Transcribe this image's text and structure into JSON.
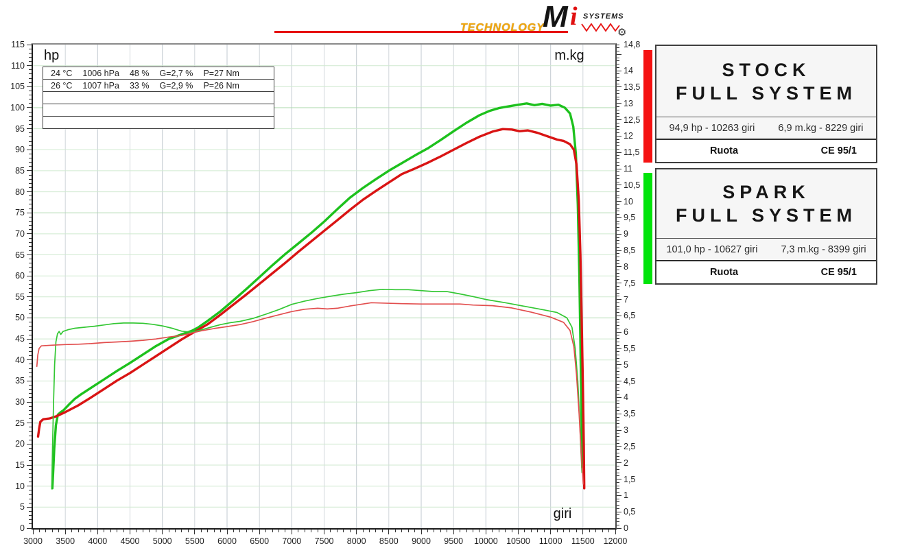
{
  "logo": {
    "technology": "TECHNOLOGY",
    "brand_m": "M",
    "brand_i": "i",
    "brand_systems": "SYSTEMS",
    "line_color": "#e60f0f",
    "technology_color": "#f3a70c"
  },
  "chart": {
    "ylabel_left": "hp",
    "ylabel_right": "m.kg",
    "xlabel": "giri",
    "info_rows": [
      [
        "24 °C",
        "1006 hPa",
        "48 %",
        "G=2,7 %",
        "P=27 Nm"
      ],
      [
        "26 °C",
        "1007 hPa",
        "33 %",
        "G=2,9 %",
        "P=26 Nm"
      ],
      [],
      [],
      []
    ]
  },
  "chart_data": {
    "type": "line",
    "title": "",
    "xlabel": "giri",
    "ylabel_left": "hp",
    "ylabel_right": "m.kg",
    "grid": {
      "h_step": 5,
      "v_step": 500,
      "h_color": "#cfe9cf",
      "h_color_major": "#abd8ab",
      "v_color": "#d0d6da",
      "v_color_major": "#c2cad0"
    },
    "x_axis": {
      "min": 3000,
      "max": 12000,
      "minor_step": 100,
      "major_step": 500,
      "labels": [
        "3000",
        "3500",
        "4000",
        "4500",
        "5000",
        "5500",
        "6000",
        "6500",
        "7000",
        "7500",
        "8000",
        "8500",
        "9000",
        "9500",
        "10000",
        "10500",
        "11000",
        "11500",
        "12000"
      ],
      "values": [
        3000,
        3500,
        4000,
        4500,
        5000,
        5500,
        6000,
        6500,
        7000,
        7500,
        8000,
        8500,
        9000,
        9500,
        10000,
        10500,
        11000,
        11500,
        12000
      ]
    },
    "left_axis": {
      "min": 0,
      "max": 115,
      "minor_step": 1,
      "major_step": 5,
      "labels": [
        "0",
        "5",
        "10",
        "15",
        "20",
        "25",
        "30",
        "35",
        "40",
        "45",
        "50",
        "55",
        "60",
        "65",
        "70",
        "75",
        "80",
        "85",
        "90",
        "95",
        "100",
        "105",
        "110",
        "115"
      ],
      "values": [
        0,
        5,
        10,
        15,
        20,
        25,
        30,
        35,
        40,
        45,
        50,
        55,
        60,
        65,
        70,
        75,
        80,
        85,
        90,
        95,
        100,
        105,
        110,
        115
      ]
    },
    "right_axis": {
      "min": 0,
      "max": 14.8,
      "minor_step": 0.1,
      "major_step": 0.5,
      "labels": [
        "0",
        "0,5",
        "1",
        "1,5",
        "2",
        "2,5",
        "3",
        "3,5",
        "4",
        "4,5",
        "5",
        "5,5",
        "6",
        "6,5",
        "7",
        "7,5",
        "8",
        "8,5",
        "9",
        "9,5",
        "10",
        "10,5",
        "11",
        "11,5",
        "12",
        "12,5",
        "13",
        "13,5",
        "14",
        "14,8"
      ],
      "values": [
        0,
        0.5,
        1,
        1.5,
        2,
        2.5,
        3,
        3.5,
        4,
        4.5,
        5,
        5.5,
        6,
        6.5,
        7,
        7.5,
        8,
        8.5,
        9,
        9.5,
        10,
        10.5,
        11,
        11.5,
        12,
        12.5,
        13,
        13.5,
        14,
        14.8
      ]
    },
    "series": [
      {
        "name": "spark-hp",
        "legend": "SPARK FULL SYSTEM hp",
        "axis": "left",
        "color": "#1dc11d",
        "width": 3.4,
        "points": [
          [
            3300,
            9.5
          ],
          [
            3312,
            13
          ],
          [
            3330,
            19
          ],
          [
            3355,
            24.5
          ],
          [
            3385,
            27
          ],
          [
            3430,
            27.6
          ],
          [
            3470,
            28
          ],
          [
            3550,
            29.3
          ],
          [
            3650,
            30.8
          ],
          [
            3750,
            31.9
          ],
          [
            3850,
            32.9
          ],
          [
            3950,
            33.9
          ],
          [
            4100,
            35.4
          ],
          [
            4300,
            37.4
          ],
          [
            4500,
            39.3
          ],
          [
            4700,
            41.3
          ],
          [
            4900,
            43.3
          ],
          [
            5100,
            45
          ],
          [
            5300,
            46.1
          ],
          [
            5450,
            46.9
          ],
          [
            5550,
            47.7
          ],
          [
            5700,
            49.3
          ],
          [
            5900,
            51.6
          ],
          [
            6100,
            54.2
          ],
          [
            6300,
            56.9
          ],
          [
            6500,
            59.7
          ],
          [
            6700,
            62.5
          ],
          [
            6900,
            65.2
          ],
          [
            7100,
            67.7
          ],
          [
            7300,
            70.2
          ],
          [
            7500,
            72.9
          ],
          [
            7700,
            75.8
          ],
          [
            7900,
            78.6
          ],
          [
            8100,
            80.9
          ],
          [
            8300,
            83
          ],
          [
            8500,
            85
          ],
          [
            8700,
            86.8
          ],
          [
            8900,
            88.6
          ],
          [
            9100,
            90.3
          ],
          [
            9300,
            92.3
          ],
          [
            9500,
            94.4
          ],
          [
            9700,
            96.4
          ],
          [
            9900,
            98.2
          ],
          [
            10050,
            99.2
          ],
          [
            10200,
            99.9
          ],
          [
            10350,
            100.3
          ],
          [
            10500,
            100.7
          ],
          [
            10630,
            101
          ],
          [
            10750,
            100.6
          ],
          [
            10870,
            100.9
          ],
          [
            11000,
            100.5
          ],
          [
            11120,
            100.7
          ],
          [
            11220,
            100
          ],
          [
            11300,
            98.6
          ],
          [
            11350,
            95.5
          ],
          [
            11390,
            89
          ],
          [
            11420,
            77
          ],
          [
            11445,
            60
          ],
          [
            11465,
            40
          ],
          [
            11480,
            25
          ],
          [
            11490,
            14.5
          ]
        ]
      },
      {
        "name": "stock-hp",
        "legend": "STOCK FULL SYSTEM hp",
        "axis": "left",
        "color": "#d91414",
        "width": 3.4,
        "points": [
          [
            3080,
            21.8
          ],
          [
            3095,
            23.6
          ],
          [
            3115,
            25.3
          ],
          [
            3160,
            25.9
          ],
          [
            3260,
            26.1
          ],
          [
            3360,
            26.6
          ],
          [
            3500,
            27.6
          ],
          [
            3700,
            29.2
          ],
          [
            3900,
            31.1
          ],
          [
            4100,
            33.1
          ],
          [
            4300,
            35.1
          ],
          [
            4500,
            36.9
          ],
          [
            4700,
            38.9
          ],
          [
            4900,
            40.9
          ],
          [
            5100,
            42.9
          ],
          [
            5300,
            44.9
          ],
          [
            5500,
            46.7
          ],
          [
            5700,
            48.5
          ],
          [
            5900,
            50.8
          ],
          [
            6100,
            53.2
          ],
          [
            6300,
            55.6
          ],
          [
            6500,
            58.1
          ],
          [
            6700,
            60.6
          ],
          [
            6900,
            63.1
          ],
          [
            7100,
            65.7
          ],
          [
            7300,
            68.2
          ],
          [
            7500,
            70.7
          ],
          [
            7700,
            73.2
          ],
          [
            7900,
            75.7
          ],
          [
            8100,
            78.1
          ],
          [
            8300,
            80.2
          ],
          [
            8500,
            82.2
          ],
          [
            8700,
            84.2
          ],
          [
            8900,
            85.5
          ],
          [
            9100,
            86.9
          ],
          [
            9300,
            88.4
          ],
          [
            9500,
            90
          ],
          [
            9700,
            91.6
          ],
          [
            9900,
            93.1
          ],
          [
            10100,
            94.3
          ],
          [
            10260,
            94.9
          ],
          [
            10400,
            94.8
          ],
          [
            10520,
            94.4
          ],
          [
            10650,
            94.6
          ],
          [
            10800,
            94
          ],
          [
            10950,
            93.2
          ],
          [
            11100,
            92.4
          ],
          [
            11200,
            92.1
          ],
          [
            11300,
            91.3
          ],
          [
            11360,
            90
          ],
          [
            11400,
            86.5
          ],
          [
            11435,
            78
          ],
          [
            11460,
            65
          ],
          [
            11480,
            50
          ],
          [
            11500,
            33
          ],
          [
            11512,
            20
          ],
          [
            11520,
            9.5
          ]
        ]
      },
      {
        "name": "spark-torque",
        "legend": "SPARK FULL SYSTEM m.kg",
        "axis": "right",
        "color": "#33c733",
        "width": 1.7,
        "points": [
          [
            3290,
            1.2
          ],
          [
            3302,
            2.4
          ],
          [
            3318,
            3.8
          ],
          [
            3335,
            5
          ],
          [
            3355,
            5.7
          ],
          [
            3380,
            5.95
          ],
          [
            3405,
            6.02
          ],
          [
            3430,
            5.93
          ],
          [
            3465,
            6.02
          ],
          [
            3550,
            6.08
          ],
          [
            3650,
            6.12
          ],
          [
            3800,
            6.15
          ],
          [
            3950,
            6.18
          ],
          [
            4100,
            6.22
          ],
          [
            4250,
            6.26
          ],
          [
            4400,
            6.28
          ],
          [
            4550,
            6.28
          ],
          [
            4700,
            6.27
          ],
          [
            4850,
            6.24
          ],
          [
            5000,
            6.19
          ],
          [
            5150,
            6.12
          ],
          [
            5300,
            6.03
          ],
          [
            5450,
            6.0
          ],
          [
            5600,
            6.07
          ],
          [
            5750,
            6.15
          ],
          [
            5900,
            6.23
          ],
          [
            6050,
            6.29
          ],
          [
            6200,
            6.33
          ],
          [
            6400,
            6.42
          ],
          [
            6600,
            6.55
          ],
          [
            6800,
            6.69
          ],
          [
            7000,
            6.85
          ],
          [
            7200,
            6.95
          ],
          [
            7400,
            7.03
          ],
          [
            7600,
            7.1
          ],
          [
            7800,
            7.16
          ],
          [
            8000,
            7.21
          ],
          [
            8200,
            7.27
          ],
          [
            8400,
            7.31
          ],
          [
            8600,
            7.3
          ],
          [
            8800,
            7.3
          ],
          [
            9000,
            7.27
          ],
          [
            9200,
            7.24
          ],
          [
            9400,
            7.24
          ],
          [
            9600,
            7.17
          ],
          [
            9800,
            7.09
          ],
          [
            10000,
            7.0
          ],
          [
            10300,
            6.9
          ],
          [
            10600,
            6.79
          ],
          [
            10900,
            6.68
          ],
          [
            11100,
            6.6
          ],
          [
            11250,
            6.44
          ],
          [
            11330,
            6.15
          ],
          [
            11380,
            5.5
          ],
          [
            11420,
            4.5
          ],
          [
            11450,
            3.3
          ],
          [
            11470,
            2.3
          ],
          [
            11485,
            1.7
          ]
        ]
      },
      {
        "name": "stock-torque",
        "legend": "STOCK FULL SYSTEM m.kg",
        "axis": "right",
        "color": "#e24e4e",
        "width": 1.7,
        "points": [
          [
            3060,
            4.95
          ],
          [
            3075,
            5.3
          ],
          [
            3095,
            5.5
          ],
          [
            3130,
            5.58
          ],
          [
            3300,
            5.6
          ],
          [
            3500,
            5.62
          ],
          [
            3700,
            5.63
          ],
          [
            3900,
            5.65
          ],
          [
            4100,
            5.68
          ],
          [
            4300,
            5.7
          ],
          [
            4500,
            5.72
          ],
          [
            4700,
            5.75
          ],
          [
            4900,
            5.79
          ],
          [
            5100,
            5.85
          ],
          [
            5300,
            5.9
          ],
          [
            5450,
            5.97
          ],
          [
            5600,
            6.04
          ],
          [
            5800,
            6.11
          ],
          [
            6000,
            6.17
          ],
          [
            6200,
            6.23
          ],
          [
            6400,
            6.32
          ],
          [
            6600,
            6.43
          ],
          [
            6800,
            6.53
          ],
          [
            7000,
            6.63
          ],
          [
            7200,
            6.7
          ],
          [
            7400,
            6.73
          ],
          [
            7550,
            6.71
          ],
          [
            7700,
            6.73
          ],
          [
            7900,
            6.8
          ],
          [
            8100,
            6.86
          ],
          [
            8230,
            6.9
          ],
          [
            8400,
            6.89
          ],
          [
            8700,
            6.87
          ],
          [
            9000,
            6.86
          ],
          [
            9300,
            6.86
          ],
          [
            9600,
            6.86
          ],
          [
            9800,
            6.83
          ],
          [
            10100,
            6.81
          ],
          [
            10400,
            6.74
          ],
          [
            10700,
            6.61
          ],
          [
            11000,
            6.46
          ],
          [
            11200,
            6.3
          ],
          [
            11300,
            6.05
          ],
          [
            11360,
            5.55
          ],
          [
            11400,
            4.7
          ],
          [
            11440,
            3.5
          ],
          [
            11475,
            2.2
          ],
          [
            11505,
            1.35
          ]
        ]
      }
    ]
  },
  "panels": [
    {
      "id": "stock",
      "bar_color": "#f51212",
      "title_line1": "STOCK",
      "title_line2": "FULL SYSTEM",
      "stat_left": "94,9 hp - 10263 giri",
      "stat_right": "6,9 m.kg - 8229 giri",
      "footer_left": "Ruota",
      "footer_right": "CE 95/1"
    },
    {
      "id": "spark",
      "bar_color": "#00e40a",
      "title_line1": "SPARK",
      "title_line2": "FULL SYSTEM",
      "stat_left": "101,0 hp - 10627 giri",
      "stat_right": "7,3 m.kg - 8399 giri",
      "footer_left": "Ruota",
      "footer_right": "CE 95/1"
    }
  ]
}
